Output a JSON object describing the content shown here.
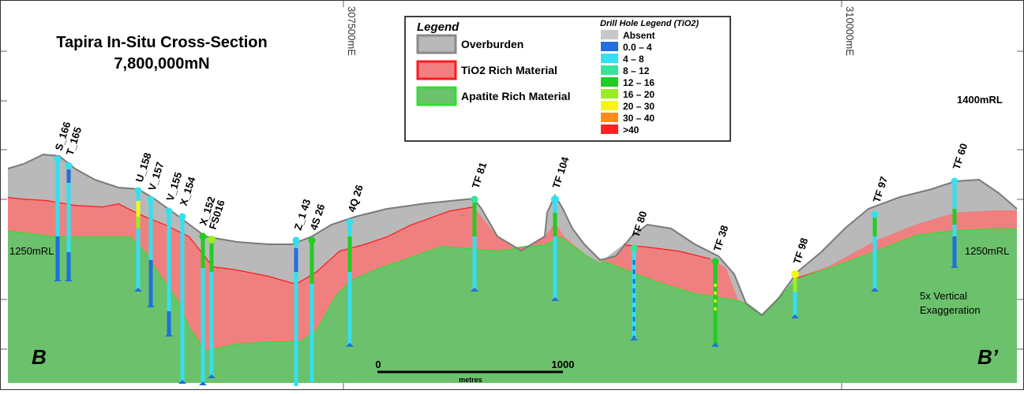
{
  "title": {
    "line1": "Tapira In-Situ Cross-Section",
    "line2": "7,800,000mN"
  },
  "eastings": [
    "307500mE",
    "310000mE"
  ],
  "elevation_labels": {
    "left_1250": "1250mRL",
    "right_1250": "1250mRL",
    "right_1400": "1400mRL"
  },
  "section_ends": {
    "left": "B",
    "right": "B’"
  },
  "note": {
    "line1": "5x Vertical",
    "line2": "Exaggeration"
  },
  "scale_bar": {
    "start": "0",
    "end": "1000",
    "unit": "metres"
  },
  "legend": {
    "title": "Legend",
    "items": [
      {
        "label": "Overburden",
        "fill": "#b9b9b9",
        "stroke": "#8a8a8a"
      },
      {
        "label": "TiO2 Rich Material",
        "fill": "#f08080",
        "stroke": "#ff1a1a"
      },
      {
        "label": "Apatite Rich Material",
        "fill": "#6cc16c",
        "stroke": "#33dd33"
      }
    ],
    "drill_title": "Drill Hole Legend (TiO2)",
    "drill_items": [
      {
        "label": "Absent",
        "color": "#c8c8c8"
      },
      {
        "label": "0.0 – 4",
        "color": "#1f6fe0"
      },
      {
        "label": "4 – 8",
        "color": "#33e0f0"
      },
      {
        "label": "8 – 12",
        "color": "#33e69a"
      },
      {
        "label": "12 – 16",
        "color": "#22cc22"
      },
      {
        "label": "16 – 20",
        "color": "#99ee22"
      },
      {
        "label": "20 – 30",
        "color": "#f5f51a"
      },
      {
        "label": "30 – 40",
        "color": "#ff8c1a"
      },
      {
        "label": ">40",
        "color": "#ff2020"
      }
    ]
  },
  "drill_holes": [
    {
      "id": "S_166",
      "collar": "#33e0f0",
      "end": "#1f6fe0"
    },
    {
      "id": "T_165",
      "collar": "#33e0f0",
      "end": "#1f6fe0"
    },
    {
      "id": "U_158",
      "collar": "#33e0f0",
      "end": "#1f6fe0"
    },
    {
      "id": "V_157",
      "collar": "#33e0f0",
      "end": "#1f6fe0"
    },
    {
      "id": "V_155",
      "collar": "#33e0f0",
      "end": "#1f6fe0"
    },
    {
      "id": "X_154",
      "collar": "#33e0f0",
      "end": "#1f6fe0"
    },
    {
      "id": "X_152",
      "collar": "#22cc22",
      "end": "#1f6fe0"
    },
    {
      "id": "FS016",
      "collar": "#99ee22",
      "end": "#1f6fe0"
    },
    {
      "id": "Z_1 43",
      "collar": "#33e0f0",
      "end": "#1f6fe0"
    },
    {
      "id": "4S 26",
      "collar": "#22cc22",
      "end": "#1f6fe0"
    },
    {
      "id": "4Q 26",
      "collar": "#33e0f0",
      "end": "#1f6fe0"
    },
    {
      "id": "TF 81",
      "collar": "#33e69a",
      "end": "#1f6fe0"
    },
    {
      "id": "TF 104",
      "collar": "#33e0f0",
      "end": "#1f6fe0"
    },
    {
      "id": "TF 80",
      "collar": "#33e69a",
      "end": "#1f6fe0"
    },
    {
      "id": "TF 38",
      "collar": "#22cc22",
      "end": "#1f6fe0"
    },
    {
      "id": "TF 98",
      "collar": "#f5f51a",
      "end": "#1f6fe0"
    },
    {
      "id": "TF 97",
      "collar": "#33e0f0",
      "end": "#1f6fe0"
    },
    {
      "id": "TF 60",
      "collar": "#33e0f0",
      "end": "#1f6fe0"
    }
  ]
}
